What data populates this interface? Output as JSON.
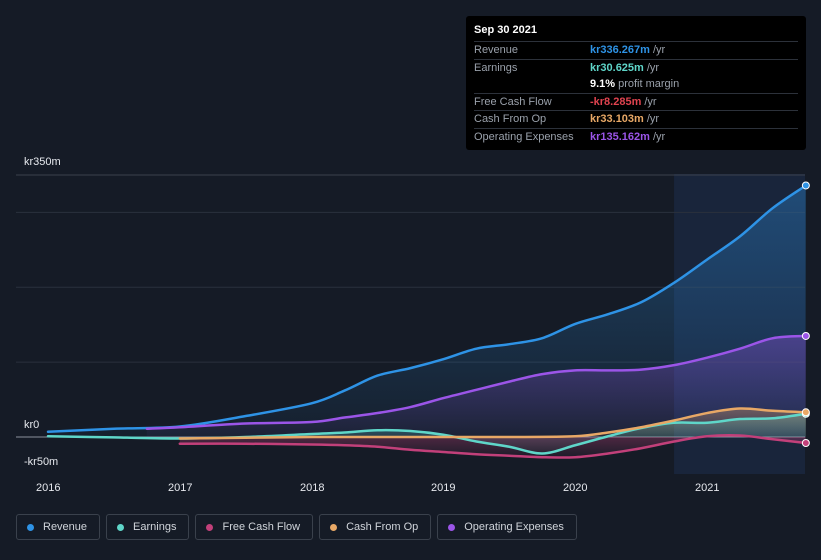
{
  "tooltip": {
    "date": "Sep 30 2021",
    "rows": [
      {
        "label": "Revenue",
        "value": "kr336.267m",
        "unit": "/yr",
        "color": "#2e93e6"
      },
      {
        "label": "Earnings",
        "value": "kr30.625m",
        "unit": "/yr",
        "color": "#5fd6c9"
      },
      {
        "label": "",
        "value": "9.1%",
        "unit": "profit margin",
        "color": "#ffffff"
      },
      {
        "label": "Free Cash Flow",
        "value": "-kr8.285m",
        "unit": "/yr",
        "color": "#e0434f"
      },
      {
        "label": "Cash From Op",
        "value": "kr33.103m",
        "unit": "/yr",
        "color": "#e8a866"
      },
      {
        "label": "Operating Expenses",
        "value": "kr135.162m",
        "unit": "/yr",
        "color": "#9b55e8"
      }
    ]
  },
  "legend": [
    {
      "label": "Revenue",
      "color": "#2e93e6"
    },
    {
      "label": "Earnings",
      "color": "#5fd6c9"
    },
    {
      "label": "Free Cash Flow",
      "color": "#c2407a"
    },
    {
      "label": "Cash From Op",
      "color": "#e8a866"
    },
    {
      "label": "Operating Expenses",
      "color": "#9b55e8"
    }
  ],
  "chart_data": {
    "type": "area",
    "y_tick_labels": [
      "kr350m",
      "kr0",
      "-kr50m"
    ],
    "ylim": [
      -50,
      350
    ],
    "x_tick_labels": [
      "2016",
      "2017",
      "2018",
      "2019",
      "2020",
      "2021"
    ],
    "xlim": [
      2015.75,
      2021.75
    ],
    "grid": true,
    "legend_position": "bottom",
    "series": [
      {
        "name": "Revenue",
        "color": "#2e93e6",
        "x": [
          2016.0,
          2016.5,
          2017.0,
          2017.5,
          2018.0,
          2018.25,
          2018.5,
          2018.75,
          2019.0,
          2019.25,
          2019.5,
          2019.75,
          2020.0,
          2020.25,
          2020.5,
          2020.75,
          2021.0,
          2021.25,
          2021.5,
          2021.75
        ],
        "y": [
          7,
          11,
          14,
          28,
          45,
          62,
          82,
          92,
          104,
          118,
          124,
          132,
          151,
          164,
          180,
          206,
          237,
          268,
          306,
          336
        ]
      },
      {
        "name": "Earnings",
        "color": "#5fd6c9",
        "x": [
          2016.0,
          2016.5,
          2017.0,
          2017.5,
          2018.0,
          2018.25,
          2018.5,
          2018.75,
          2019.0,
          2019.25,
          2019.5,
          2019.75,
          2020.0,
          2020.25,
          2020.5,
          2020.75,
          2021.0,
          2021.25,
          2021.5,
          2021.75
        ],
        "y": [
          1,
          -0.5,
          -2,
          0,
          4,
          6,
          9,
          8,
          3,
          -6,
          -13,
          -22,
          -11,
          1,
          12,
          19,
          19,
          24,
          25,
          31
        ]
      },
      {
        "name": "Free Cash Flow",
        "color": "#c2407a",
        "x": [
          2017.0,
          2017.5,
          2018.0,
          2018.25,
          2018.5,
          2018.75,
          2019.0,
          2019.25,
          2019.5,
          2019.75,
          2020.0,
          2020.25,
          2020.5,
          2020.75,
          2021.0,
          2021.25,
          2021.5,
          2021.75
        ],
        "y": [
          -9,
          -9,
          -10,
          -11,
          -13,
          -17,
          -20,
          -23,
          -25,
          -27,
          -27,
          -22,
          -15,
          -6,
          1,
          2,
          -3,
          -8
        ]
      },
      {
        "name": "Cash From Op",
        "color": "#e8a866",
        "x": [
          2017.0,
          2017.5,
          2018.0,
          2018.5,
          2019.0,
          2019.5,
          2020.0,
          2020.25,
          2020.5,
          2020.75,
          2021.0,
          2021.25,
          2021.5,
          2021.75
        ],
        "y": [
          -2,
          -1,
          0,
          0,
          0,
          0,
          1,
          6,
          13,
          22,
          32,
          38,
          35,
          33
        ]
      },
      {
        "name": "Operating Expenses",
        "color": "#9b55e8",
        "x": [
          2016.75,
          2017.0,
          2017.5,
          2018.0,
          2018.25,
          2018.5,
          2018.75,
          2019.0,
          2019.25,
          2019.5,
          2019.75,
          2020.0,
          2020.25,
          2020.5,
          2020.75,
          2021.0,
          2021.25,
          2021.5,
          2021.75
        ],
        "y": [
          11,
          13,
          18,
          20,
          26,
          32,
          40,
          52,
          63,
          74,
          84,
          89,
          89,
          90,
          96,
          106,
          118,
          132,
          135
        ]
      }
    ]
  }
}
